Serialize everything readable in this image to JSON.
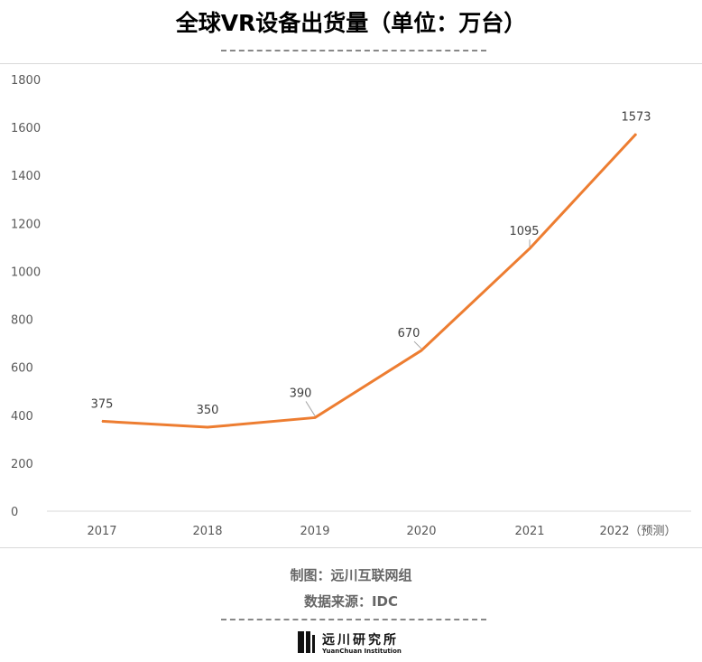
{
  "title": "全球VR设备出货量（单位：万台）",
  "credits": {
    "maker": "制图：远川互联网组",
    "source": "数据来源：IDC"
  },
  "logo": {
    "cn": "远川研究所",
    "en": "YuanChuan Institution"
  },
  "chart_data": {
    "type": "line",
    "title": "全球VR设备出货量（单位：万台）",
    "categories": [
      "2017",
      "2018",
      "2019",
      "2020",
      "2021",
      "2022（预测）"
    ],
    "series": [
      {
        "values": [
          375,
          350,
          390,
          670,
          1095,
          1573
        ],
        "color": "#ED7D31"
      }
    ],
    "data_labels": [
      "375",
      "350",
      "390",
      "670",
      "1095",
      "1573"
    ],
    "ylim": [
      0,
      1800
    ],
    "yticks": [
      "0",
      "200",
      "400",
      "600",
      "800",
      "1000",
      "1200",
      "1400",
      "1600",
      "1800"
    ],
    "grid": false,
    "legend": "none"
  }
}
